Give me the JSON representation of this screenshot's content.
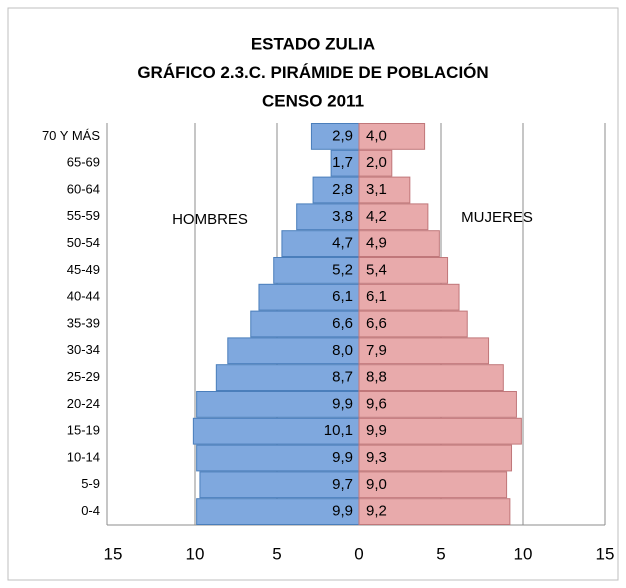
{
  "chart_data": {
    "type": "pyramid",
    "title": [
      "ESTADO ZULIA",
      "GRÁFICO 2.3.C. PIRÁMIDE DE POBLACIÓN",
      "CENSO 2011"
    ],
    "categories": [
      "70 Y MÁS",
      "65-69",
      "60-64",
      "55-59",
      "50-54",
      "45-49",
      "40-44",
      "35-39",
      "30-34",
      "25-29",
      "20-24",
      "15-19",
      "10-14",
      "5-9",
      "0-4"
    ],
    "series": [
      {
        "name": "HOMBRES",
        "color": "#7fa8de",
        "side": "left",
        "values": [
          2.9,
          1.7,
          2.8,
          3.8,
          4.7,
          5.2,
          6.1,
          6.6,
          8.0,
          8.7,
          9.9,
          10.1,
          9.9,
          9.7,
          9.9
        ],
        "value_labels": [
          "2,9",
          "1,7",
          "2,8",
          "3,8",
          "4,7",
          "5,2",
          "6,1",
          "6,6",
          "8,0",
          "8,7",
          "9,9",
          "10,1",
          "9,9",
          "9,7",
          "9,9"
        ]
      },
      {
        "name": "MUJERES",
        "color": "#e8aaab",
        "side": "right",
        "values": [
          4.0,
          2.0,
          3.1,
          4.2,
          4.9,
          5.4,
          6.1,
          6.6,
          7.9,
          8.8,
          9.6,
          9.9,
          9.3,
          9.0,
          9.2
        ],
        "value_labels": [
          "4,0",
          "2,0",
          "3,1",
          "4,2",
          "4,9",
          "5,4",
          "6,1",
          "6,6",
          "7,9",
          "8,8",
          "9,6",
          "9,9",
          "9,3",
          "9,0",
          "9,2"
        ]
      }
    ],
    "xlim": [
      -15,
      15
    ],
    "xticks": [
      {
        "value": -15,
        "label": "15"
      },
      {
        "value": -10,
        "label": "10"
      },
      {
        "value": -5,
        "label": "5"
      },
      0,
      5,
      10,
      15
    ],
    "grid": true
  }
}
